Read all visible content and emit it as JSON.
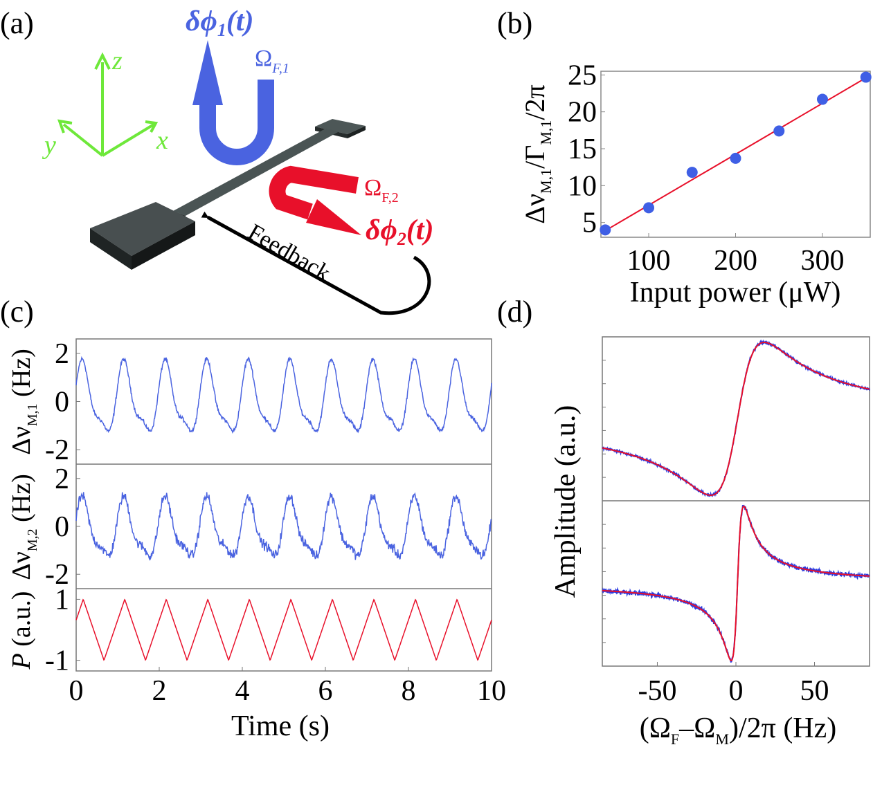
{
  "colors": {
    "blue": "#4a63e0",
    "red": "#e8102a",
    "green": "#6ee83a",
    "black": "#000000",
    "grey": "#3c4445"
  },
  "panel_labels": {
    "a": "(a)",
    "b": "(b)",
    "c": "(c)",
    "d": "(d)"
  },
  "schematic": {
    "axis_z": "z",
    "axis_y": "y",
    "axis_x": "x",
    "dphi1_main": "δϕ",
    "dphi1_sub": "1",
    "dphi1_tail": "(t)",
    "omega_f1_main": "Ω",
    "omega_f1_sub": "F,1",
    "omega_f2_main": "Ω",
    "omega_f2_sub": "F,2",
    "dphi2_main": "δϕ",
    "dphi2_sub": "2",
    "dphi2_tail": "(t)",
    "feedback": "Feedback"
  },
  "chart_data": [
    {
      "id": "b",
      "type": "scatter",
      "xlabel": "Input power (μW)",
      "ylabel": {
        "main1": "Δν",
        "sub1": "M,1",
        "mid": "/Γ",
        "sub2": "M,1",
        "tail": "/2π"
      },
      "xlim": [
        45,
        355
      ],
      "ylim": [
        3,
        25.5
      ],
      "xticks": [
        100,
        200,
        300
      ],
      "yticks": [
        5,
        10,
        15,
        20,
        25
      ],
      "series": [
        {
          "name": "data",
          "style": "points",
          "color": "#3f5fe5",
          "x": [
            50,
            100,
            150,
            200,
            250,
            300,
            350
          ],
          "y": [
            4.0,
            7.0,
            11.8,
            13.7,
            17.4,
            21.7,
            24.7
          ]
        },
        {
          "name": "linear fit",
          "style": "line",
          "color": "#e8102a",
          "x": [
            45,
            355
          ],
          "y": [
            3.55,
            24.95
          ]
        }
      ]
    },
    {
      "id": "c",
      "type": "line",
      "xlabel": "Time (s)",
      "xlim": [
        0,
        10
      ],
      "xticks": [
        0,
        2,
        4,
        6,
        8,
        10
      ],
      "subplots": [
        {
          "name": "dnu_M1",
          "ylabel": {
            "main": "Δν",
            "sub": "M,1",
            "tail": " (Hz)"
          },
          "ylim": [
            -2.6,
            2.6
          ],
          "yticks": [
            2,
            0,
            -2
          ],
          "color": "#4a63e0",
          "model": {
            "period_s": 1.0,
            "amplitude_hz": 1.8,
            "offset_hz": 0.0,
            "noise_hz": 0.12
          }
        },
        {
          "name": "dnu_M2",
          "ylabel": {
            "main": "Δν",
            "sub": "M,2",
            "tail": " (Hz)"
          },
          "ylim": [
            -2.6,
            2.6
          ],
          "yticks": [
            2,
            0,
            -2
          ],
          "color": "#4a63e0",
          "model": {
            "period_s": 1.0,
            "amplitude_hz": 1.5,
            "offset_hz": -0.2,
            "noise_hz": 0.3
          }
        },
        {
          "name": "P",
          "ylabel": {
            "main": "P",
            "tail": " (a.u.)"
          },
          "ylim": [
            -1.35,
            1.35
          ],
          "yticks": [
            1,
            -1
          ],
          "color": "#e8102a",
          "model": {
            "shape": "triangle",
            "period_s": 1.0,
            "min": -1,
            "max": 1,
            "peaks_s": [
              0.17,
              1.17,
              2.17,
              3.17,
              4.17,
              5.17,
              6.17,
              7.17,
              8.17,
              9.17
            ]
          }
        }
      ]
    },
    {
      "id": "d",
      "type": "line",
      "xlabel": {
        "open": "(Ω",
        "sub1": "F",
        "mid": "–Ω",
        "sub2": "M",
        "tail": ")/2π (Hz)"
      },
      "ylabel": "Amplitude (a.u.)",
      "xlim": [
        -85,
        85
      ],
      "xticks": [
        -50,
        0,
        50
      ],
      "subplots": [
        {
          "name": "upper",
          "ylim": [
            0,
            1
          ],
          "data_color": "#2b3be0",
          "fit_color": "#e8102a",
          "model": {
            "width_hz": 17,
            "center_hz": 1,
            "noise": 0.012
          }
        },
        {
          "name": "lower",
          "ylim": [
            0,
            1
          ],
          "data_color": "#2b3be0",
          "fit_color": "#e8102a",
          "model": {
            "width_hz": 4,
            "center_hz": 1,
            "noise": 0.02
          }
        }
      ]
    }
  ]
}
